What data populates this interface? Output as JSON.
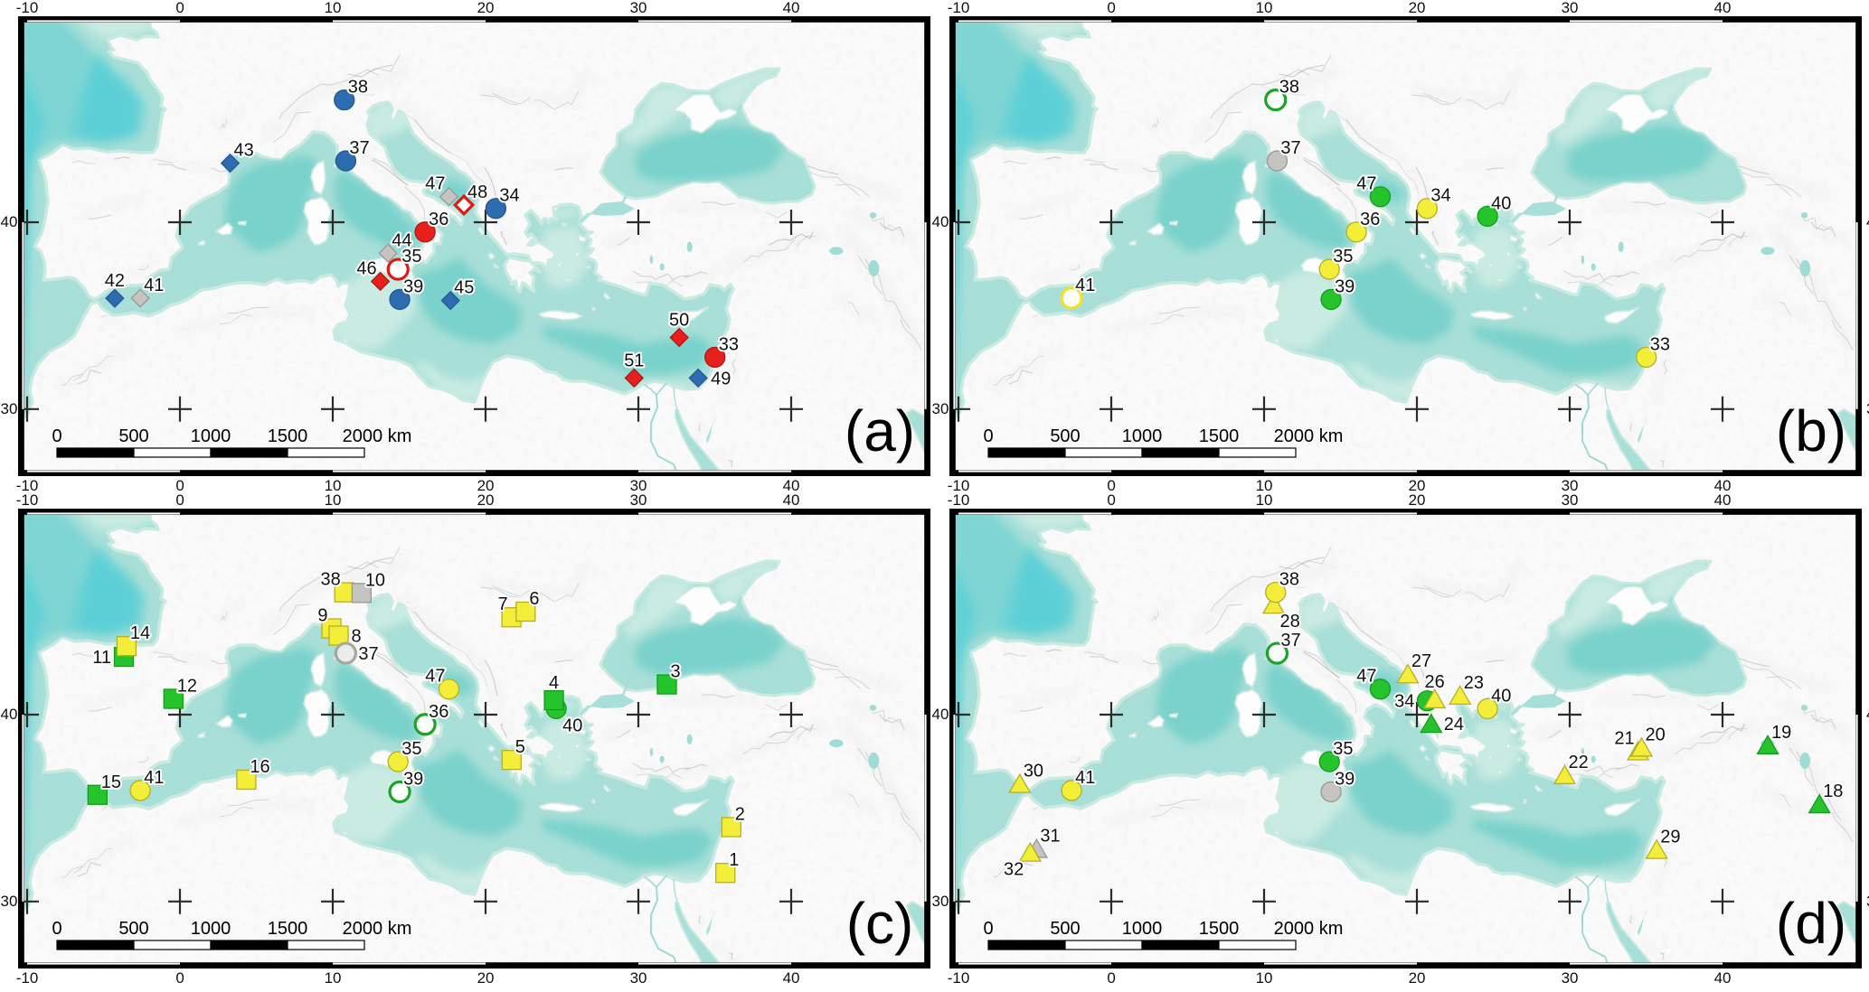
{
  "figure": {
    "type": "four_panel_site_map",
    "region": "Mediterranean",
    "projection": {
      "name": "mercator",
      "lon_min": -10.24,
      "lon_max": 48.76,
      "lat_min": 26.38,
      "lat_max": 49.36
    },
    "axis": {
      "lon_ticks": [
        -10,
        0,
        10,
        20,
        30,
        40
      ],
      "lat_ticks": [
        40,
        30
      ]
    },
    "scalebar": {
      "tick_labels": [
        "0",
        "500",
        "1000",
        "1500"
      ],
      "end_label": "2000 km",
      "segment_km": 500,
      "segments": 4
    },
    "colors": {
      "sea": "#a8dfd8",
      "sea_deep": "#7ad2cc",
      "sea_pale": "#c9ebe2",
      "land": "#fdfdfd",
      "blue": "#2d6cae",
      "red": "#e8201d",
      "gray": "#c6c4c0",
      "graylight": "#e4e4e1",
      "yellow": "#f2ee39",
      "green": "#25c42d",
      "white": "#ffffff",
      "label": "#1a1a1a"
    }
  },
  "sites": {
    "1": {
      "lon": 35.69,
      "lat": 31.61
    },
    "2": {
      "lon": 36.08,
      "lat": 34.13
    },
    "3": {
      "lon": 31.86,
      "lat": 41.5
    },
    "4": {
      "lon": 24.47,
      "lat": 40.72
    },
    "5": {
      "lon": 21.7,
      "lat": 37.69
    },
    "6": {
      "lon": 22.62,
      "lat": 44.97
    },
    "7": {
      "lon": 21.69,
      "lat": 44.71
    },
    "8": {
      "lon": 10.38,
      "lat": 43.85
    },
    "9": {
      "lon": 9.91,
      "lat": 44.19
    },
    "10": {
      "lon": 11.88,
      "lat": 45.83
    },
    "11": {
      "lon": -3.67,
      "lat": 42.84
    },
    "12": {
      "lon": -0.43,
      "lat": 40.79
    },
    "14": {
      "lon": -3.5,
      "lat": 43.35
    },
    "15": {
      "lon": -5.4,
      "lat": 35.86
    },
    "16": {
      "lon": 4.34,
      "lat": 36.66
    },
    "18": {
      "lon": 46.34,
      "lat": 35.36
    },
    "19": {
      "lon": 42.96,
      "lat": 38.45
    },
    "20": {
      "lon": 34.7,
      "lat": 38.33
    },
    "21": {
      "lon": 34.47,
      "lat": 38.14
    },
    "22": {
      "lon": 29.67,
      "lat": 36.9
    },
    "23": {
      "lon": 22.82,
      "lat": 40.95
    },
    "24": {
      "lon": 20.93,
      "lat": 39.54
    },
    "26": {
      "lon": 21.16,
      "lat": 40.77
    },
    "27": {
      "lon": 19.4,
      "lat": 42.0
    },
    "28": {
      "lon": 10.62,
      "lat": 45.3
    },
    "29": {
      "lon": 35.69,
      "lat": 32.89
    },
    "30": {
      "lon": -5.99,
      "lat": 36.44
    },
    "31": {
      "lon": -4.89,
      "lat": 32.94
    },
    "32": {
      "lon": -5.31,
      "lat": 32.74
    },
    "33": {
      "lon": 35.01,
      "lat": 32.9
    },
    "34": {
      "lon": 20.67,
      "lat": 40.69
    },
    "35": {
      "lon": 14.27,
      "lat": 37.6
    },
    "36": {
      "lon": 16.04,
      "lat": 39.51
    },
    "37": {
      "lon": 10.85,
      "lat": 43.01
    },
    "38": {
      "lon": 10.75,
      "lat": 45.86
    },
    "39": {
      "lon": 14.38,
      "lat": 36.02
    },
    "40": {
      "lon": 24.62,
      "lat": 40.3
    },
    "41": {
      "lon": -2.6,
      "lat": 36.09
    },
    "42": {
      "lon": -4.27,
      "lat": 36.08
    },
    "43": {
      "lon": 3.28,
      "lat": 42.9
    },
    "44": {
      "lon": 13.62,
      "lat": 38.43
    },
    "45": {
      "lon": 17.7,
      "lat": 35.96
    },
    "46": {
      "lon": 13.11,
      "lat": 36.97
    },
    "47": {
      "lon": 17.6,
      "lat": 41.27
    },
    "48": {
      "lon": 18.58,
      "lat": 40.86
    },
    "49": {
      "lon": 33.91,
      "lat": 31.75
    },
    "50": {
      "lon": 32.67,
      "lat": 33.98
    },
    "51": {
      "lon": 29.72,
      "lat": 31.75
    }
  },
  "panels": [
    {
      "id": "a",
      "label": "(a)",
      "markers": [
        {
          "site": 38,
          "shape": "circle",
          "color": "blue",
          "open": false,
          "label_anchor": "tr"
        },
        {
          "site": 37,
          "shape": "circle",
          "color": "blue",
          "open": false,
          "label_anchor": "tr"
        },
        {
          "site": 43,
          "shape": "diamond",
          "color": "blue",
          "open": false,
          "label_anchor": "tr"
        },
        {
          "site": 47,
          "shape": "diamond",
          "color": "gray",
          "open": false,
          "label_anchor": "tl"
        },
        {
          "site": 48,
          "shape": "diamond",
          "color": "red",
          "open": true,
          "label_anchor": "tr"
        },
        {
          "site": 34,
          "shape": "circle",
          "color": "blue",
          "open": false,
          "label_anchor": "tr"
        },
        {
          "site": 36,
          "shape": "circle",
          "color": "red",
          "open": false,
          "label_anchor": "tr"
        },
        {
          "site": 44,
          "shape": "diamond",
          "color": "gray",
          "open": false,
          "label_anchor": "tr"
        },
        {
          "site": 35,
          "shape": "circle",
          "color": "red",
          "open": true,
          "label_anchor": "tr"
        },
        {
          "site": 46,
          "shape": "diamond",
          "color": "red",
          "open": false,
          "label_anchor": "tl"
        },
        {
          "site": 39,
          "shape": "circle",
          "color": "blue",
          "open": false,
          "label_anchor": "tr"
        },
        {
          "site": 45,
          "shape": "diamond",
          "color": "blue",
          "open": false,
          "label_anchor": "tr"
        },
        {
          "site": 42,
          "shape": "diamond",
          "color": "blue",
          "open": false,
          "label_anchor": "t"
        },
        {
          "site": 41,
          "shape": "diamond",
          "color": "gray",
          "open": false,
          "label_anchor": "tr"
        },
        {
          "site": 50,
          "shape": "diamond",
          "color": "red",
          "open": false,
          "label_anchor": "t"
        },
        {
          "site": 33,
          "shape": "circle",
          "color": "red",
          "open": false,
          "label_anchor": "tr"
        },
        {
          "site": 51,
          "shape": "diamond",
          "color": "red",
          "open": false,
          "label_anchor": "t"
        },
        {
          "site": 49,
          "shape": "diamond",
          "color": "blue",
          "open": false,
          "label_anchor": "r"
        }
      ]
    },
    {
      "id": "b",
      "label": "(b)",
      "markers": [
        {
          "site": 38,
          "shape": "circle",
          "color": "green",
          "open": true,
          "label_anchor": "tr"
        },
        {
          "site": 37,
          "shape": "circle",
          "color": "gray",
          "open": false,
          "label_anchor": "tr"
        },
        {
          "site": 47,
          "shape": "circle",
          "color": "green",
          "open": false,
          "label_anchor": "tl"
        },
        {
          "site": 34,
          "shape": "circle",
          "color": "yellow",
          "open": false,
          "label_anchor": "tr"
        },
        {
          "site": 40,
          "shape": "circle",
          "color": "green",
          "open": false,
          "label_anchor": "tr"
        },
        {
          "site": 36,
          "shape": "circle",
          "color": "yellow",
          "open": false,
          "label_anchor": "tr"
        },
        {
          "site": 35,
          "shape": "circle",
          "color": "yellow",
          "open": false,
          "label_anchor": "tr"
        },
        {
          "site": 39,
          "shape": "circle",
          "color": "green",
          "open": false,
          "label_anchor": "tr"
        },
        {
          "site": 41,
          "shape": "circle",
          "color": "yellow",
          "open": true,
          "label_anchor": "tr"
        },
        {
          "site": 33,
          "shape": "circle",
          "color": "yellow",
          "open": false,
          "label_anchor": "tr"
        }
      ]
    },
    {
      "id": "c",
      "label": "(c)",
      "markers": [
        {
          "site": 9,
          "shape": "square",
          "color": "yellow",
          "open": false,
          "label_anchor": "tl"
        },
        {
          "site": 8,
          "shape": "square",
          "color": "yellow",
          "open": false,
          "label_anchor": "r"
        },
        {
          "site": 38,
          "shape": "square",
          "color": "yellow",
          "open": false,
          "label_anchor": "tl"
        },
        {
          "site": 10,
          "shape": "square",
          "color": "gray",
          "open": false,
          "label_anchor": "tr"
        },
        {
          "site": 7,
          "shape": "square",
          "color": "yellow",
          "open": false,
          "label_anchor": "tl"
        },
        {
          "site": 6,
          "shape": "square",
          "color": "yellow",
          "open": false,
          "label_anchor": "tr"
        },
        {
          "site": 37,
          "shape": "circle",
          "color": "graylight",
          "open": true,
          "label_anchor": "r"
        },
        {
          "site": 11,
          "shape": "square",
          "color": "green",
          "open": false,
          "label_anchor": "l"
        },
        {
          "site": 14,
          "shape": "square",
          "color": "yellow",
          "open": false,
          "label_anchor": "tr"
        },
        {
          "site": 12,
          "shape": "square",
          "color": "green",
          "open": false,
          "label_anchor": "tr"
        },
        {
          "site": 47,
          "shape": "circle",
          "color": "yellow",
          "open": false,
          "label_anchor": "tl"
        },
        {
          "site": 36,
          "shape": "circle",
          "color": "green",
          "open": true,
          "label_anchor": "tr"
        },
        {
          "site": 3,
          "shape": "square",
          "color": "green",
          "open": false,
          "label_anchor": "tr"
        },
        {
          "site": 40,
          "shape": "circle",
          "color": "green",
          "open": false,
          "label_anchor": "br"
        },
        {
          "site": 4,
          "shape": "square",
          "color": "green",
          "open": false,
          "label_anchor": "t"
        },
        {
          "site": 35,
          "shape": "circle",
          "color": "yellow",
          "open": false,
          "label_anchor": "tr"
        },
        {
          "site": 39,
          "shape": "circle",
          "color": "green",
          "open": true,
          "label_anchor": "tr"
        },
        {
          "site": 5,
          "shape": "square",
          "color": "yellow",
          "open": false,
          "label_anchor": "tr"
        },
        {
          "site": 16,
          "shape": "square",
          "color": "yellow",
          "open": false,
          "label_anchor": "tr"
        },
        {
          "site": 15,
          "shape": "square",
          "color": "green",
          "open": false,
          "label_anchor": "tr"
        },
        {
          "site": 41,
          "shape": "circle",
          "color": "yellow",
          "open": false,
          "label_anchor": "tr"
        },
        {
          "site": 2,
          "shape": "square",
          "color": "yellow",
          "open": false,
          "label_anchor": "tr"
        },
        {
          "site": 1,
          "shape": "square",
          "color": "yellow",
          "open": false,
          "label_anchor": "tr"
        }
      ]
    },
    {
      "id": "d",
      "label": "(d)",
      "markers": [
        {
          "site": 28,
          "shape": "triangle",
          "color": "yellow",
          "open": false,
          "label_anchor": "br"
        },
        {
          "site": 38,
          "shape": "circle",
          "color": "yellow",
          "open": false,
          "label_anchor": "tr"
        },
        {
          "site": 37,
          "shape": "circle",
          "color": "green",
          "open": true,
          "label_anchor": "tr"
        },
        {
          "site": 27,
          "shape": "triangle",
          "color": "yellow",
          "open": false,
          "label_anchor": "tr"
        },
        {
          "site": 47,
          "shape": "circle",
          "color": "green",
          "open": false,
          "label_anchor": "tl"
        },
        {
          "site": 34,
          "shape": "circle",
          "color": "green",
          "open": false,
          "label_anchor": "l"
        },
        {
          "site": 26,
          "shape": "triangle",
          "color": "yellow",
          "open": false,
          "label_anchor": "t"
        },
        {
          "site": 23,
          "shape": "triangle",
          "color": "yellow",
          "open": false,
          "label_anchor": "tr"
        },
        {
          "site": 24,
          "shape": "triangle",
          "color": "green",
          "open": false,
          "label_anchor": "r"
        },
        {
          "site": 40,
          "shape": "circle",
          "color": "yellow",
          "open": false,
          "label_anchor": "tr"
        },
        {
          "site": 19,
          "shape": "triangle",
          "color": "green",
          "open": false,
          "label_anchor": "tr"
        },
        {
          "site": 21,
          "shape": "triangle",
          "color": "yellow",
          "open": false,
          "label_anchor": "tl"
        },
        {
          "site": 20,
          "shape": "triangle",
          "color": "yellow",
          "open": false,
          "label_anchor": "tr"
        },
        {
          "site": 22,
          "shape": "triangle",
          "color": "yellow",
          "open": false,
          "label_anchor": "tr"
        },
        {
          "site": 35,
          "shape": "circle",
          "color": "green",
          "open": false,
          "label_anchor": "tr"
        },
        {
          "site": 39,
          "shape": "circle",
          "color": "gray",
          "open": false,
          "label_anchor": "tr"
        },
        {
          "site": 30,
          "shape": "triangle",
          "color": "yellow",
          "open": false,
          "label_anchor": "tr"
        },
        {
          "site": 41,
          "shape": "circle",
          "color": "yellow",
          "open": false,
          "label_anchor": "tr"
        },
        {
          "site": 31,
          "shape": "triangle",
          "color": "gray",
          "open": false,
          "label_anchor": "tr"
        },
        {
          "site": 32,
          "shape": "triangle",
          "color": "yellow",
          "open": false,
          "label_anchor": "bl"
        },
        {
          "site": 18,
          "shape": "triangle",
          "color": "green",
          "open": false,
          "label_anchor": "tr"
        },
        {
          "site": 29,
          "shape": "triangle",
          "color": "yellow",
          "open": false,
          "label_anchor": "tr"
        }
      ]
    }
  ]
}
